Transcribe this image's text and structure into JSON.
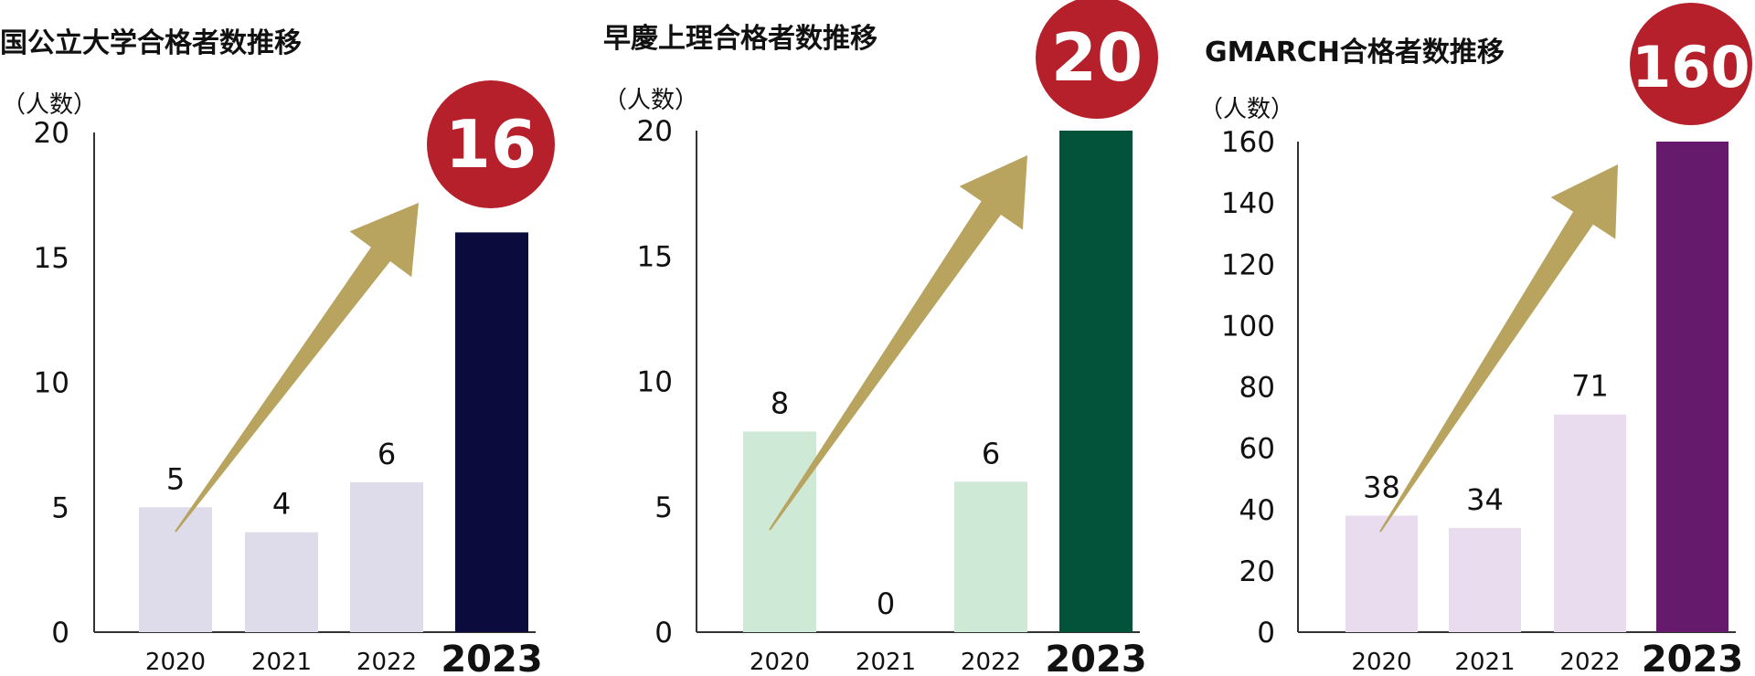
{
  "chart_data": [
    {
      "type": "bar",
      "title": "国公立大学合格者数推移",
      "unit_label": "（人数）",
      "categories": [
        "2020",
        "2021",
        "2022",
        "2023"
      ],
      "values": [
        5,
        4,
        6,
        16
      ],
      "value_labels": [
        "5",
        "4",
        "6",
        ""
      ],
      "highlight_label": "16",
      "yticks": [
        "0",
        "5",
        "10",
        "15",
        "20"
      ],
      "ylim": [
        0,
        20
      ],
      "grid": false,
      "colors": {
        "bar": "#dedceb",
        "highlight": "#0b0b3e"
      }
    },
    {
      "type": "bar",
      "title": "早慶上理合格者数推移",
      "unit_label": "（人数）",
      "categories": [
        "2020",
        "2021",
        "2022",
        "2023"
      ],
      "values": [
        8,
        0,
        6,
        20
      ],
      "value_labels": [
        "8",
        "0",
        "6",
        ""
      ],
      "highlight_label": "20",
      "yticks": [
        "0",
        "5",
        "10",
        "15",
        "20"
      ],
      "ylim": [
        0,
        20
      ],
      "grid": false,
      "colors": {
        "bar": "#cfe9d7",
        "highlight": "#02533a"
      }
    },
    {
      "type": "bar",
      "title": "GMARCH合格者数推移",
      "unit_label": "（人数）",
      "categories": [
        "2020",
        "2021",
        "2022",
        "2023"
      ],
      "values": [
        38,
        34,
        71,
        160
      ],
      "value_labels": [
        "38",
        "34",
        "71",
        ""
      ],
      "highlight_label": "160",
      "yticks": [
        "0",
        "20",
        "40",
        "60",
        "80",
        "100",
        "120",
        "140",
        "160"
      ],
      "ylim": [
        0,
        160
      ],
      "grid": false,
      "colors": {
        "bar": "#e8dcee",
        "highlight": "#661a6b"
      }
    }
  ],
  "style": {
    "arrow_color": "#b8a35f",
    "badge_color": "#b5202b"
  }
}
